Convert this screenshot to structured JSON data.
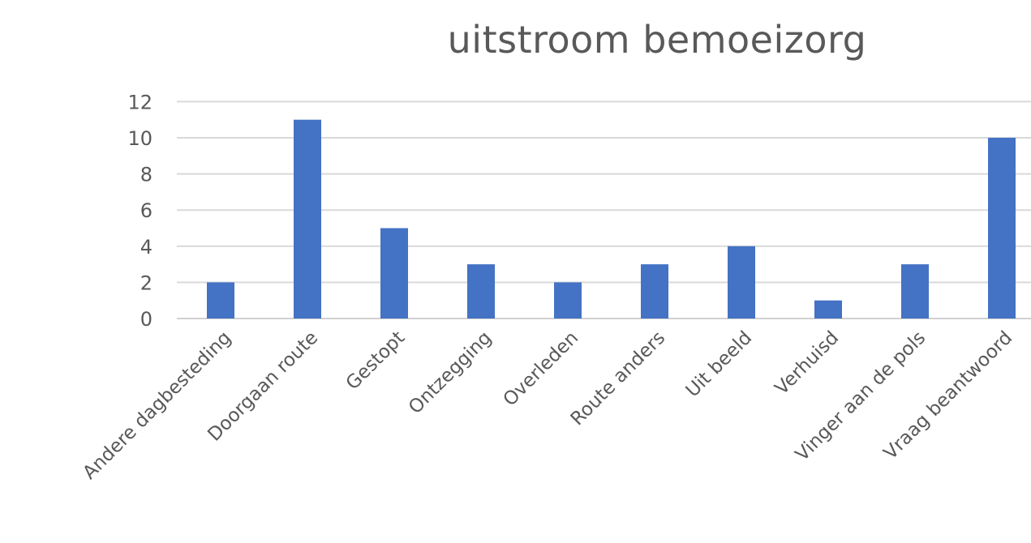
{
  "chart_data": {
    "type": "bar",
    "title": "uitstroom bemoeizorg",
    "categories": [
      "Andere dagbesteding",
      "Doorgaan route",
      "Gestopt",
      "Ontzegging",
      "Overleden",
      "Route anders",
      "Uit beeld",
      "Verhuisd",
      "Vinger aan de pols",
      "Vraag beantwoord"
    ],
    "values": [
      2,
      11,
      5,
      3,
      2,
      3,
      4,
      1,
      3,
      10
    ],
    "xlabel": "",
    "ylabel": "",
    "ylim": [
      0,
      12
    ],
    "yticks": [
      0,
      2,
      4,
      6,
      8,
      10,
      12
    ],
    "grid": true,
    "legend": "none",
    "bar_color": "#4472c4"
  }
}
